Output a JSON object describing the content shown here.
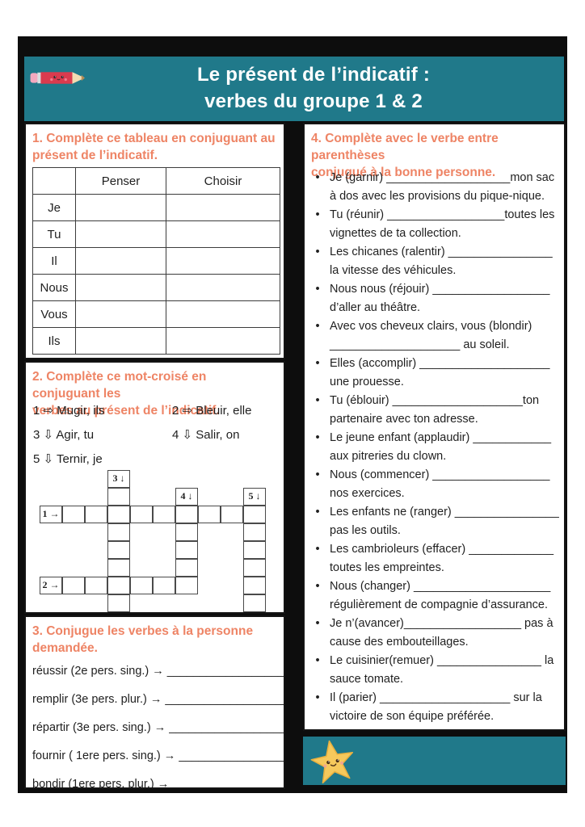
{
  "colors": {
    "teal": "#20798a",
    "orange": "#ee8465",
    "ink": "#1f1f1f",
    "card": "#0d0d0d"
  },
  "header": {
    "pencil_icon": "kawaii-pencil",
    "title_line1": "Le présent de l’indicatif :",
    "title_line2": "verbes du groupe 1 & 2"
  },
  "section1": {
    "title": "1. Complète ce tableau en conjuguant au\nprésent de l’indicatif.",
    "table": {
      "headers": [
        "",
        "Penser",
        "Choisir"
      ],
      "rows": [
        "Je",
        "Tu",
        "Il",
        "Nous",
        "Vous",
        "Ils"
      ]
    }
  },
  "section2": {
    "title": "2. Complète ce mot-croisé en conjuguant les\nverbes au présent de l’indicatif.",
    "clues": [
      "1 ⇨ Mugir, ils",
      "2 ⇨ Bleuir, elle",
      "3 ⇩ Agir, tu",
      "4 ⇩ Salir, on",
      "5 ⇩ Ternir, je"
    ],
    "crossword": {
      "labels": [
        {
          "c": 3,
          "r": 0,
          "t": "3 ↓"
        },
        {
          "c": 6,
          "r": 1,
          "t": "4 ↓"
        },
        {
          "c": 9,
          "r": 1,
          "t": "5 ↓"
        },
        {
          "c": 0,
          "r": 2,
          "t": "1 →"
        },
        {
          "c": 0,
          "r": 6,
          "t": "2 →"
        }
      ],
      "cells": [
        [
          3,
          1
        ],
        [
          1,
          2
        ],
        [
          2,
          2
        ],
        [
          3,
          2
        ],
        [
          4,
          2
        ],
        [
          5,
          2
        ],
        [
          6,
          2
        ],
        [
          7,
          2
        ],
        [
          8,
          2
        ],
        [
          9,
          2
        ],
        [
          3,
          3
        ],
        [
          6,
          3
        ],
        [
          9,
          3
        ],
        [
          3,
          4
        ],
        [
          6,
          4
        ],
        [
          9,
          4
        ],
        [
          3,
          5
        ],
        [
          6,
          5
        ],
        [
          9,
          5
        ],
        [
          1,
          6
        ],
        [
          2,
          6
        ],
        [
          3,
          6
        ],
        [
          4,
          6
        ],
        [
          5,
          6
        ],
        [
          6,
          6
        ],
        [
          9,
          6
        ],
        [
          3,
          7
        ],
        [
          9,
          7
        ]
      ]
    }
  },
  "section3": {
    "title": "3. Conjugue les verbes à la personne\ndemandée.",
    "lines": [
      "réussir (2e pers. sing.) →  ____________________",
      "remplir (3e pers. plur.) →  ____________________",
      "répartir (3e pers. sing.) → ____________________",
      "fournir ( 1ere pers. sing.) →  __________________",
      "bondir (1ere pers. plur.) → ___________________"
    ]
  },
  "section4": {
    "title": "4. Complète avec le verbe entre parenthèses\nconjugué à la bonne personne.",
    "bullets": [
      {
        "l1": "Je (garnir) ___________________mon sac",
        "l2": "à dos avec les provisions du pique-nique."
      },
      {
        "l1": "Tu (réunir) __________________toutes les",
        "l2": "vignettes de ta collection."
      },
      {
        "l1": "Les chicanes (ralentir) ________________",
        "l2": "la vitesse des véhicules."
      },
      {
        "l1": "Nous nous (réjouir) __________________",
        "l2": "d’aller au théâtre."
      },
      {
        "l1": "Avec vos cheveux clairs, vous (blondir)",
        "l2": "____________________ au soleil."
      },
      {
        "l1": "Elles (accomplir) ____________________",
        "l2": "une prouesse."
      },
      {
        "l1": "Tu (éblouir) ____________________ton",
        "l2": "partenaire avec ton adresse."
      },
      {
        "l1": "Le jeune enfant (applaudir) ____________",
        "l2": "aux pitreries du clown."
      },
      {
        "l1": "Nous (commencer) __________________",
        "l2": "nos exercices."
      },
      {
        "l1": "Les enfants ne (ranger) ________________",
        "l2": "pas les outils."
      },
      {
        "l1": "Les cambrioleurs (effacer) _____________",
        "l2": "toutes les empreintes."
      },
      {
        "l1": "Nous (changer) _____________________",
        "l2": "régulièrement de compagnie d’assurance."
      },
      {
        "l1": "Je n’(avancer)__________________ pas à",
        "l2": "cause des embouteillages."
      },
      {
        "l1": "Le cuisinier(remuer) ________________ la",
        "l2": "sauce tomate."
      },
      {
        "l1": "Il (parier) ____________________ sur la",
        "l2": "victoire de son équipe préférée."
      }
    ]
  },
  "footer": {
    "star_icon": "kawaii-star"
  }
}
